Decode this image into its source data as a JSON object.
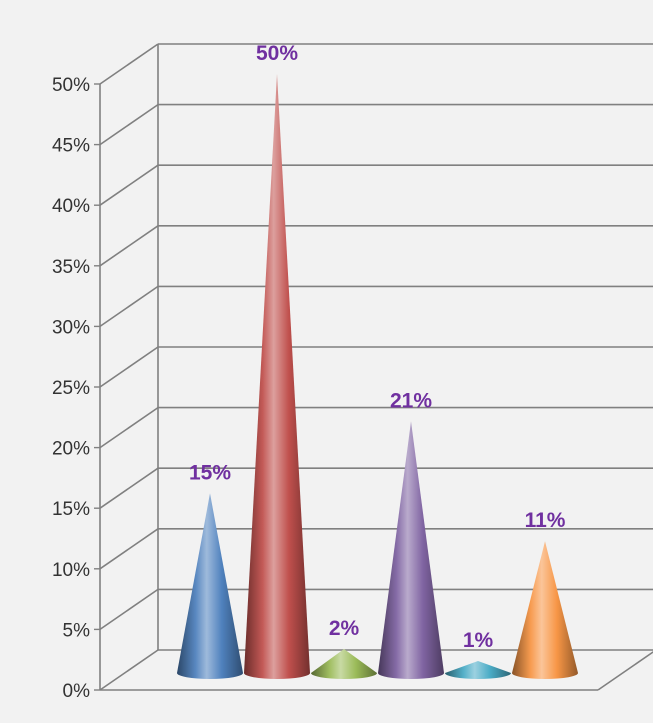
{
  "chart_data": {
    "type": "bar",
    "style": "3d-cone",
    "title": "",
    "xlabel": "",
    "ylabel": "",
    "ylim": [
      0,
      50
    ],
    "y_ticks": [
      "0%",
      "5%",
      "10%",
      "15%",
      "20%",
      "25%",
      "30%",
      "35%",
      "40%",
      "45%",
      "50%"
    ],
    "grid": true,
    "legend": "none",
    "values": [
      15,
      50,
      2,
      21,
      1,
      11
    ],
    "data_labels": [
      "15%",
      "50%",
      "2%",
      "21%",
      "1%",
      "11%"
    ],
    "colors": [
      "#4f81bd",
      "#c0504d",
      "#9bbb59",
      "#8064a2",
      "#4bacc6",
      "#f79646"
    ],
    "label_color": "#7030a0",
    "background": "#f2f2f2",
    "gridline_color": "#808080"
  }
}
